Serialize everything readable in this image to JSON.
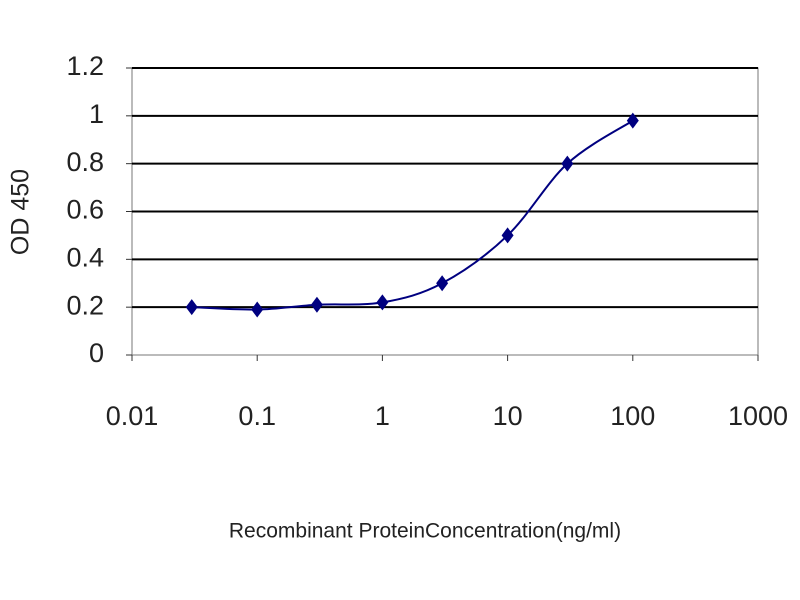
{
  "chart_data": {
    "type": "line",
    "x_label": "Recombinant ProteinConcentration(ng/ml)",
    "y_label": "OD 450",
    "x_scale": "log",
    "xlim": [
      0.01,
      1000
    ],
    "xticks": [
      0.01,
      0.1,
      1,
      10,
      100,
      1000
    ],
    "ylim": [
      0,
      1.2
    ],
    "yticks": [
      0,
      0.2,
      0.4,
      0.6,
      0.8,
      1,
      1.2
    ],
    "grid": true,
    "x": [
      0.03,
      0.1,
      0.3,
      1,
      3,
      10,
      30,
      100
    ],
    "series": [
      {
        "color": "#000080",
        "values": [
          0.2,
          0.19,
          0.21,
          0.22,
          0.3,
          0.5,
          0.8,
          0.98
        ]
      }
    ]
  }
}
